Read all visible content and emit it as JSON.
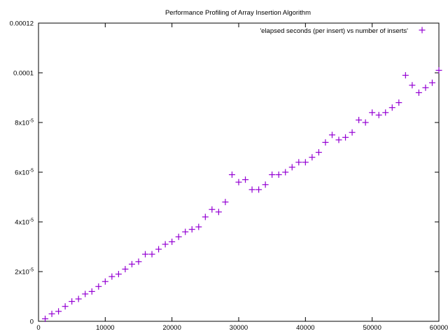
{
  "chart_data": {
    "type": "scatter",
    "title": "Performance Profiling of Array Insertion Algorithm",
    "xlabel": "",
    "ylabel": "",
    "xlim": [
      0,
      60000
    ],
    "ylim": [
      0,
      0.00012
    ],
    "grid": false,
    "legend_position": "top-right",
    "marker": "plus",
    "color": "#9400d3",
    "x_ticks": [
      {
        "value": 0,
        "label": "0"
      },
      {
        "value": 10000,
        "label": "10000"
      },
      {
        "value": 20000,
        "label": "20000"
      },
      {
        "value": 30000,
        "label": "30000"
      },
      {
        "value": 40000,
        "label": "40000"
      },
      {
        "value": 50000,
        "label": "50000"
      },
      {
        "value": 60000,
        "label": "60000"
      }
    ],
    "y_ticks": [
      {
        "value": 0,
        "label": "0"
      },
      {
        "value": 2e-05,
        "label": "2x10-5",
        "mantissa": "2x10",
        "exponent": "-5"
      },
      {
        "value": 4e-05,
        "label": "4x10-5",
        "mantissa": "4x10",
        "exponent": "-5"
      },
      {
        "value": 6e-05,
        "label": "6x10-5",
        "mantissa": "6x10",
        "exponent": "-5"
      },
      {
        "value": 8e-05,
        "label": "8x10-5",
        "mantissa": "8x10",
        "exponent": "-5"
      },
      {
        "value": 0.0001,
        "label": "0.0001"
      },
      {
        "value": 0.00012,
        "label": "0.00012"
      }
    ],
    "series": [
      {
        "name": "'elapsed seconds (per insert) vs number of inserts'",
        "x": [
          1000,
          2000,
          3000,
          4000,
          5000,
          6000,
          7000,
          8000,
          9000,
          10000,
          11000,
          12000,
          13000,
          14000,
          15000,
          16000,
          17000,
          18000,
          19000,
          20000,
          21000,
          22000,
          23000,
          24000,
          25000,
          26000,
          27000,
          28000,
          29000,
          30000,
          31000,
          32000,
          33000,
          34000,
          35000,
          36000,
          37000,
          38000,
          39000,
          40000,
          41000,
          42000,
          43000,
          44000,
          45000,
          46000,
          47000,
          48000,
          49000,
          50000,
          51000,
          52000,
          53000,
          54000,
          55000,
          56000,
          57000,
          58000,
          59000,
          60000
        ],
        "y": [
          1e-06,
          3e-06,
          4e-06,
          6e-06,
          8e-06,
          9e-06,
          1.1e-05,
          1.2e-05,
          1.4e-05,
          1.6e-05,
          1.8e-05,
          1.9e-05,
          2.1e-05,
          2.3e-05,
          2.4e-05,
          2.7e-05,
          2.7e-05,
          2.9e-05,
          3.1e-05,
          3.2e-05,
          3.4e-05,
          3.6e-05,
          3.7e-05,
          3.8e-05,
          4.2e-05,
          4.5e-05,
          4.4e-05,
          4.8e-05,
          5.9e-05,
          5.6e-05,
          5.7e-05,
          5.3e-05,
          5.3e-05,
          5.5e-05,
          5.9e-05,
          5.9e-05,
          6e-05,
          6.2e-05,
          6.4e-05,
          6.4e-05,
          6.6e-05,
          6.8e-05,
          7.2e-05,
          7.5e-05,
          7.3e-05,
          7.4e-05,
          7.6e-05,
          8.1e-05,
          8e-05,
          8.4e-05,
          8.3e-05,
          8.4e-05,
          8.6e-05,
          8.8e-05,
          9.9e-05,
          9.5e-05,
          9.2e-05,
          9.4e-05,
          9.6e-05,
          0.000101
        ]
      }
    ]
  }
}
